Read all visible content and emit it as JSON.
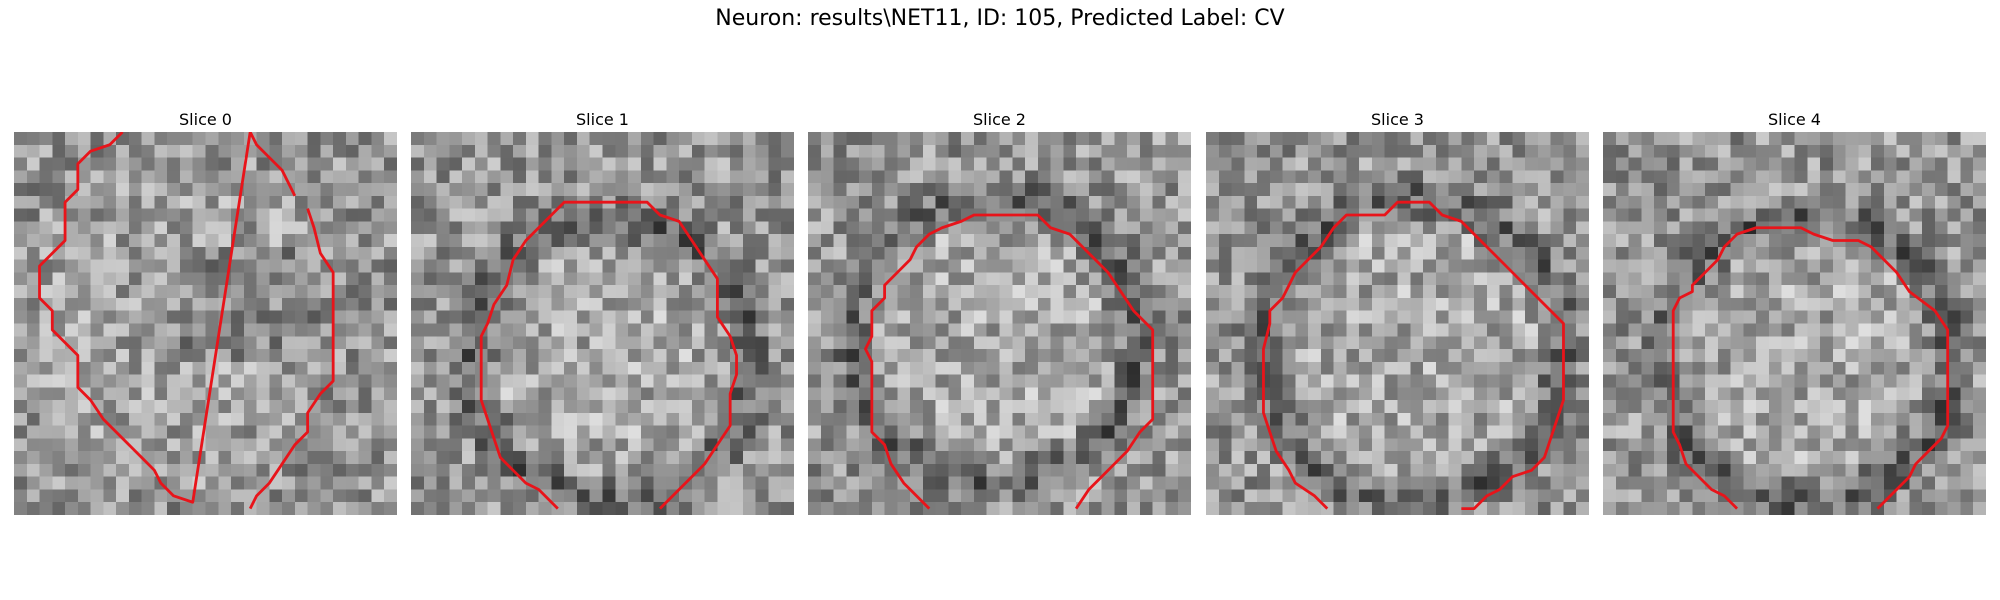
{
  "figure": {
    "title": "Neuron: results\\NET11, ID: 105, Predicted Label: CV"
  },
  "style": {
    "contour_color": "#e8141a",
    "colormap": "grayscale"
  },
  "panels": [
    {
      "title": "Slice 0",
      "image_description": "noisy grayscale microscopy patch, oval nucleus with open contour",
      "contour": [
        [
          8.5,
          0
        ],
        [
          7.5,
          1
        ],
        [
          6,
          1.5
        ],
        [
          5,
          2.5
        ],
        [
          5,
          4.5
        ],
        [
          4,
          5.5
        ],
        [
          4,
          8.5
        ],
        [
          3,
          9.5
        ],
        [
          2,
          10.5
        ],
        [
          2,
          13
        ],
        [
          3,
          14
        ],
        [
          3,
          15.5
        ],
        [
          4,
          16.5
        ],
        [
          5,
          17.5
        ],
        [
          5,
          20
        ],
        [
          6,
          21
        ],
        [
          7,
          22.5
        ],
        [
          8,
          23.5
        ],
        [
          9,
          24.5
        ],
        [
          10,
          25.5
        ],
        [
          11,
          26.5
        ],
        [
          11.5,
          27.5
        ],
        [
          12.5,
          28.5
        ],
        [
          14,
          29
        ],
        [
          18.5,
          0
        ],
        [
          19,
          1
        ],
        [
          21,
          3
        ],
        [
          22,
          5
        ],
        [
          23,
          6
        ],
        [
          23.5,
          7.5
        ],
        [
          24,
          9.5
        ],
        [
          25,
          11
        ],
        [
          25,
          19.5
        ],
        [
          24,
          20.5
        ],
        [
          23,
          22
        ],
        [
          23,
          23.5
        ],
        [
          22,
          24.5
        ],
        [
          21,
          26
        ],
        [
          20,
          27.5
        ],
        [
          19,
          28.5
        ],
        [
          18.5,
          29.5
        ]
      ],
      "contour_split": 28,
      "seed": 11
    },
    {
      "title": "Slice 1",
      "image_description": "grayscale patch with a dark ring surrounding a lighter round nucleus",
      "contour": [
        [
          11.5,
          29.5
        ],
        [
          10,
          28
        ],
        [
          9,
          27.5
        ],
        [
          8,
          26.5
        ],
        [
          7,
          25.5
        ],
        [
          6.5,
          24
        ],
        [
          6,
          22.5
        ],
        [
          5.5,
          21
        ],
        [
          5.5,
          16
        ],
        [
          6,
          15
        ],
        [
          6.5,
          13.5
        ],
        [
          7.5,
          12
        ],
        [
          8,
          10
        ],
        [
          9,
          8.5
        ],
        [
          10,
          7.5
        ],
        [
          11,
          6.5
        ],
        [
          12,
          5.5
        ],
        [
          18.5,
          5.5
        ],
        [
          19.5,
          6.5
        ],
        [
          21,
          7
        ],
        [
          22,
          8.5
        ],
        [
          23,
          10
        ],
        [
          24,
          11.5
        ],
        [
          24,
          14.5
        ],
        [
          25,
          16
        ],
        [
          25.5,
          17.5
        ],
        [
          25.5,
          19
        ],
        [
          25,
          20.5
        ],
        [
          25,
          23
        ],
        [
          24,
          24.5
        ],
        [
          23,
          26
        ],
        [
          22,
          27
        ],
        [
          21,
          28
        ],
        [
          20,
          29
        ],
        [
          19.5,
          29.5
        ]
      ],
      "contour_split": 35,
      "seed": 23
    },
    {
      "title": "Slice 2",
      "image_description": "grayscale patch with a round nucleus and faint dark outer ring",
      "contour": [
        [
          9.5,
          29.5
        ],
        [
          8.5,
          28.5
        ],
        [
          7.5,
          27.5
        ],
        [
          6.5,
          26
        ],
        [
          6,
          24.5
        ],
        [
          5,
          23.5
        ],
        [
          5,
          18
        ],
        [
          4.5,
          17
        ],
        [
          5,
          16
        ],
        [
          5,
          14
        ],
        [
          6,
          13
        ],
        [
          6,
          12
        ],
        [
          7,
          11
        ],
        [
          8,
          10
        ],
        [
          8.5,
          9
        ],
        [
          9.5,
          8
        ],
        [
          10.5,
          7.5
        ],
        [
          12,
          7
        ],
        [
          13,
          6.5
        ],
        [
          15,
          6.5
        ],
        [
          18,
          6.5
        ],
        [
          19,
          7.5
        ],
        [
          20.5,
          8
        ],
        [
          21.5,
          9
        ],
        [
          22.5,
          10
        ],
        [
          23.5,
          11
        ],
        [
          24.5,
          12.5
        ],
        [
          25.5,
          14
        ],
        [
          27,
          15.5
        ],
        [
          27,
          22.5
        ],
        [
          26,
          23.5
        ],
        [
          25,
          25
        ],
        [
          24,
          26
        ],
        [
          23,
          27
        ],
        [
          22,
          28
        ],
        [
          21,
          29.5
        ]
      ],
      "contour_split": 36,
      "seed": 37
    },
    {
      "title": "Slice 3",
      "image_description": "grayscale patch with dark ring around a bright textured nucleus",
      "contour": [
        [
          9.5,
          29.5
        ],
        [
          8.5,
          28.5
        ],
        [
          7,
          27.5
        ],
        [
          6.5,
          26.5
        ],
        [
          5.5,
          25
        ],
        [
          5,
          23.5
        ],
        [
          4.5,
          22
        ],
        [
          4.5,
          17
        ],
        [
          5,
          15
        ],
        [
          5,
          14
        ],
        [
          6,
          13
        ],
        [
          6.5,
          12
        ],
        [
          7,
          11
        ],
        [
          8,
          10
        ],
        [
          9,
          9
        ],
        [
          10,
          7.5
        ],
        [
          11,
          6.5
        ],
        [
          14,
          6.5
        ],
        [
          15,
          5.5
        ],
        [
          17.5,
          5.5
        ],
        [
          18.5,
          6.5
        ],
        [
          20,
          7
        ],
        [
          21,
          8
        ],
        [
          22,
          9
        ],
        [
          23,
          10
        ],
        [
          24,
          11
        ],
        [
          25,
          12
        ],
        [
          26,
          13
        ],
        [
          27,
          14
        ],
        [
          28,
          15
        ],
        [
          28,
          21
        ],
        [
          27.5,
          22.5
        ],
        [
          27,
          24
        ],
        [
          26.5,
          25.5
        ],
        [
          25.5,
          26.5
        ],
        [
          24,
          27
        ],
        [
          23,
          28
        ],
        [
          22,
          28.5
        ],
        [
          21,
          29.5
        ],
        [
          20,
          29.5
        ]
      ],
      "contour_split": 40,
      "seed": 53
    },
    {
      "title": "Slice 4",
      "image_description": "grayscale patch with mottled dark ring around a medium-gray nucleus",
      "contour": [
        [
          10.5,
          29.5
        ],
        [
          9.5,
          28.5
        ],
        [
          8.5,
          28
        ],
        [
          7.5,
          27
        ],
        [
          6.5,
          26
        ],
        [
          6,
          24.5
        ],
        [
          5.5,
          23.5
        ],
        [
          5.5,
          14
        ],
        [
          6,
          13
        ],
        [
          7,
          12.5
        ],
        [
          7,
          12
        ],
        [
          8,
          11
        ],
        [
          9,
          10
        ],
        [
          9.5,
          9
        ],
        [
          10.5,
          8
        ],
        [
          12,
          7.5
        ],
        [
          15.5,
          7.5
        ],
        [
          16.5,
          8
        ],
        [
          18,
          8.5
        ],
        [
          20,
          8.5
        ],
        [
          21,
          9
        ],
        [
          22,
          10
        ],
        [
          23,
          11
        ],
        [
          24,
          12.5
        ],
        [
          26,
          14
        ],
        [
          27,
          15.5
        ],
        [
          27,
          23
        ],
        [
          26.5,
          24
        ],
        [
          25.5,
          25
        ],
        [
          24.5,
          26
        ],
        [
          24,
          27
        ],
        [
          23.5,
          27.5
        ],
        [
          22.5,
          28.5
        ],
        [
          22,
          29
        ],
        [
          21.5,
          29.5
        ]
      ],
      "contour_split": 35,
      "seed": 71
    }
  ]
}
